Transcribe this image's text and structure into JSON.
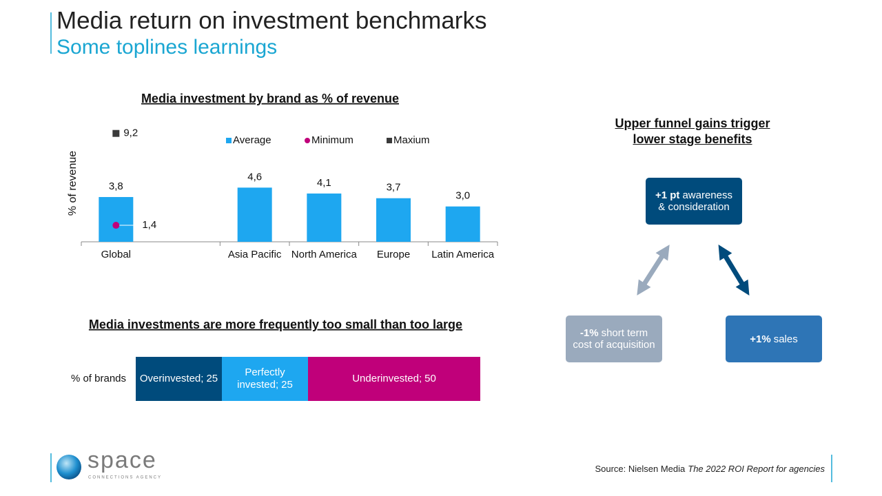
{
  "header": {
    "title": "Media return on investment benchmarks",
    "subtitle": "Some toplines learnings"
  },
  "chart_data": [
    {
      "type": "bar",
      "title": "Media investment by brand as % of revenue",
      "y_label": "% of revenue",
      "categories": [
        "Global",
        null,
        "Asia Pacific",
        "North America",
        "Europe",
        "Latin America"
      ],
      "ylim": [
        0,
        10
      ],
      "series": [
        {
          "name": "Average",
          "mark": "bar",
          "color": "#1ea7f0",
          "values": [
            3.8,
            null,
            4.6,
            4.1,
            3.7,
            3.0
          ],
          "value_labels": [
            "3,8",
            null,
            "4,6",
            "4,1",
            "3,7",
            "3,0"
          ]
        },
        {
          "name": "Minimum",
          "mark": "dot",
          "color": "#c0007a",
          "values": [
            1.4,
            null,
            null,
            null,
            null,
            null
          ],
          "value_labels": [
            "1,4",
            null,
            null,
            null,
            null,
            null
          ]
        },
        {
          "name": "Maxium",
          "mark": "square",
          "color": "#3a3a3a",
          "values": [
            9.2,
            null,
            null,
            null,
            null,
            null
          ],
          "value_labels": [
            "9,2",
            null,
            null,
            null,
            null,
            null
          ]
        }
      ]
    },
    {
      "type": "stacked_bar",
      "title": "Media investments are more frequently too small than too large",
      "categories": [
        "% of brands"
      ],
      "xlim": [
        0,
        100
      ],
      "series": [
        {
          "name": "Overinvested",
          "color": "#004b7c",
          "values": [
            25
          ]
        },
        {
          "name": "Perfectly invested",
          "color": "#1ea7f0",
          "values": [
            25
          ]
        },
        {
          "name": "Underinvested",
          "color": "#c0007a",
          "values": [
            50
          ]
        }
      ]
    }
  ],
  "diagram": {
    "title": "Upper funnel gains trigger lower stage benefits",
    "nodes": [
      {
        "bold": "+1 pt",
        "text": "awareness & consideration"
      },
      {
        "bold": "-1%",
        "text": "short term cost of acquisition"
      },
      {
        "bold": "+1%",
        "text": "sales"
      }
    ]
  },
  "footer": {
    "logo": "space",
    "logo_tagline": "CONNECTIONS AGENCY",
    "source": "Source: Nielsen Media",
    "source_title": "The 2022 ROI Report for agencies"
  }
}
